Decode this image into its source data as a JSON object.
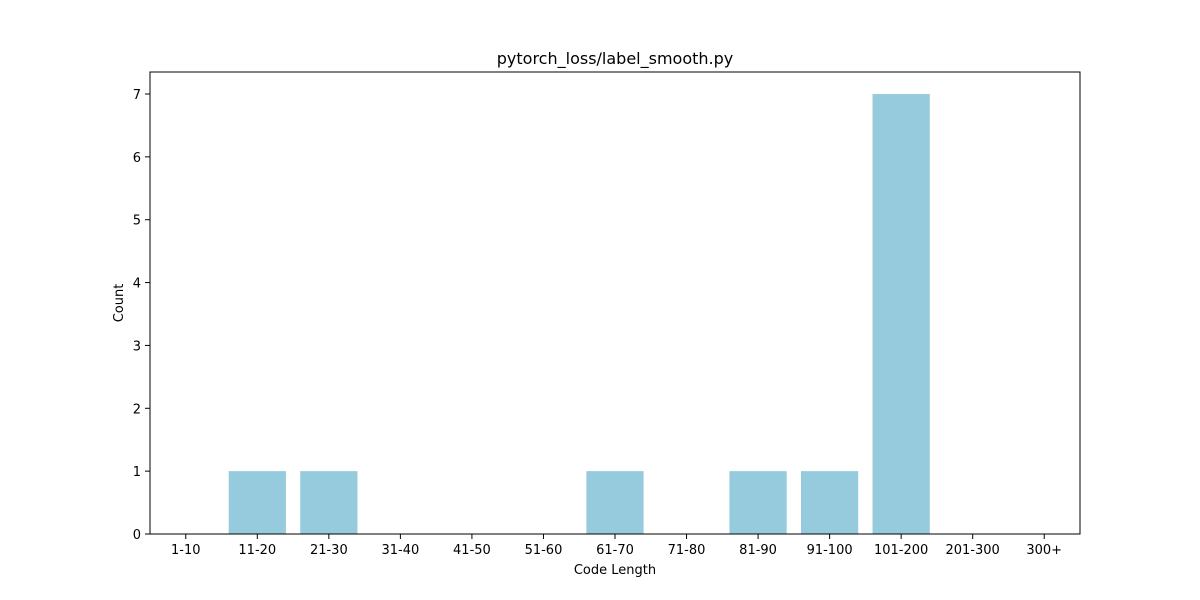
{
  "chart_data": {
    "type": "bar",
    "title": "pytorch_loss/label_smooth.py",
    "xlabel": "Code Length",
    "ylabel": "Count",
    "categories": [
      "1-10",
      "11-20",
      "21-30",
      "31-40",
      "41-50",
      "51-60",
      "61-70",
      "71-80",
      "81-90",
      "91-100",
      "101-200",
      "201-300",
      "300+"
    ],
    "values": [
      0,
      1,
      1,
      0,
      0,
      0,
      1,
      0,
      1,
      1,
      7,
      0,
      0
    ],
    "ylim": [
      0,
      7.35
    ],
    "yticks": [
      0,
      1,
      2,
      3,
      4,
      5,
      6,
      7
    ],
    "bar_color": "#96cadd",
    "grid": false,
    "legend": "none"
  }
}
